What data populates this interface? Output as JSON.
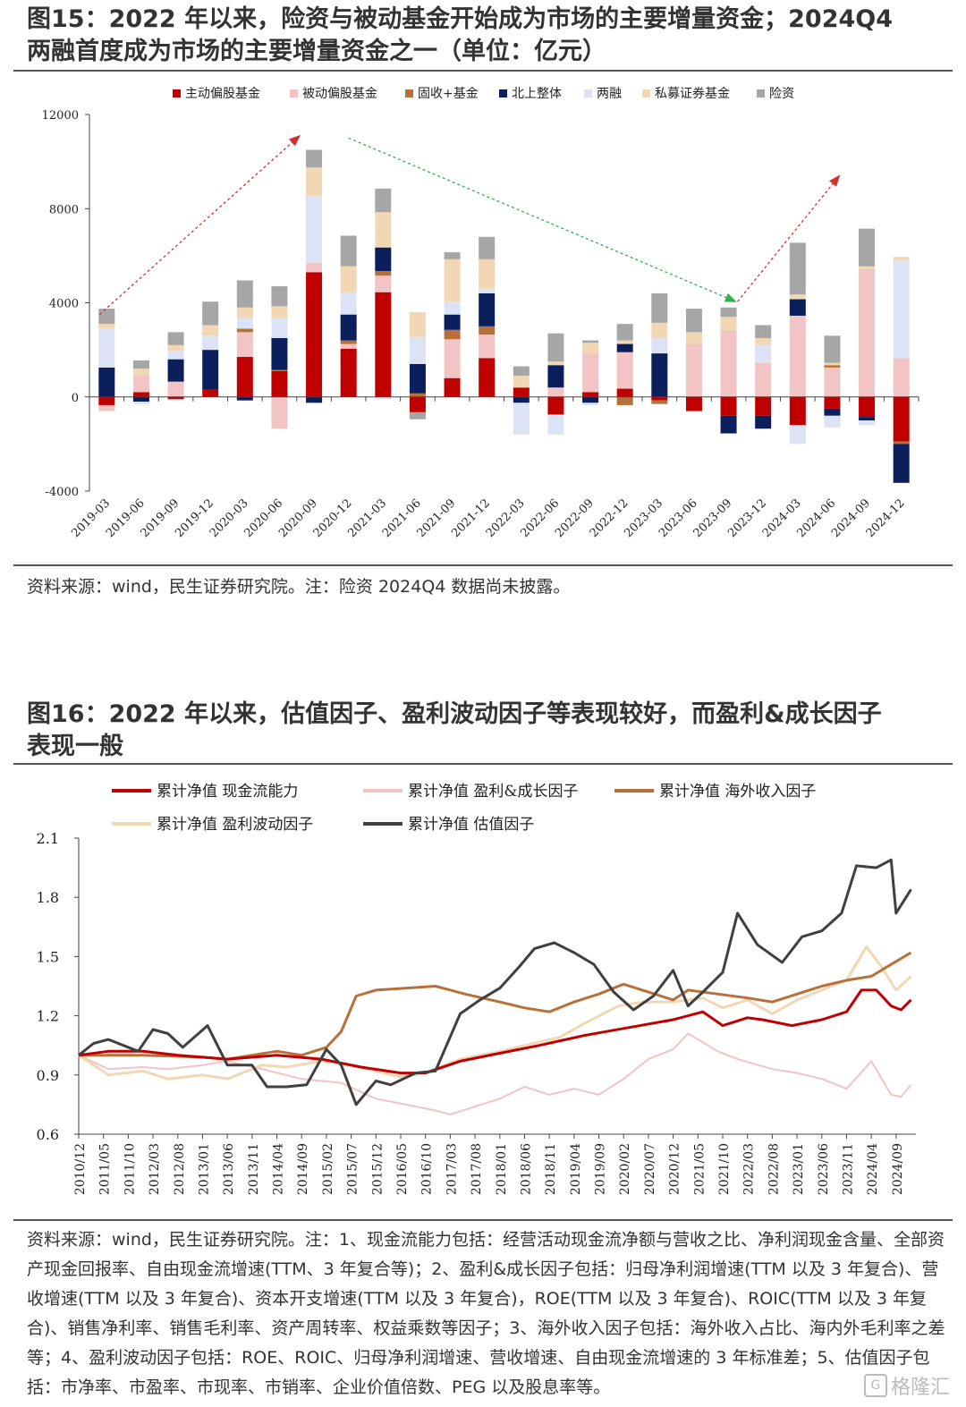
{
  "fig15": {
    "title_line1": "图15：2022 年以来，险资与被动基金开始成为市场的主要增量资金；2024Q4",
    "title_line2": "两融首度成为市场的主要增量资金之一（单位：亿元）",
    "source": "资料来源：wind，民生证券研究院。注：险资 2024Q4 数据尚未披露。"
  },
  "fig16": {
    "title_line1": "图16：2022 年以来，估值因子、盈利波动因子等表现较好，而盈利&成长因子",
    "title_line2": "表现一般",
    "source": "资料来源：wind，民生证券研究院。注：1、现金流能力包括：经营活动现金流净额与营收之比、净利润现金含量、全部资产现金回报率、自由现金流增速(TTM、3 年复合等)；2、盈利&成长因子包括：归母净利润增速(TTM 以及 3 年复合)、营收增速(TTM 以及 3 年复合)、资本开支增速(TTM 以及 3 年复合)，ROE(TTM 以及 3 年复合)、ROIC(TTM 以及 3 年复合)、销售净利率、销售毛利率、资产周转率、权益乘数等因子；3、海外收入因子包括：海外收入占比、海内外毛利率之差等；4、盈利波动因子包括：ROE、ROIC、归母净利润增速、营收增速、自由现金流增速的 3 年标准差；5、估值因子包括：市净率、市盈率、市现率、市销率、企业价值倍数、PEG 以及股息率等。"
  },
  "watermark": {
    "glyph": "G",
    "text": "格隆汇"
  },
  "chart_data": [
    {
      "type": "bar",
      "stacked": true,
      "categories": [
        "2019-03",
        "2019-06",
        "2019-09",
        "2019-12",
        "2020-03",
        "2020-06",
        "2020-09",
        "2020-12",
        "2021-03",
        "2021-06",
        "2021-09",
        "2021-12",
        "2022-03",
        "2022-06",
        "2022-09",
        "2022-12",
        "2023-03",
        "2023-06",
        "2023-09",
        "2023-12",
        "2024-03",
        "2024-06",
        "2024-09",
        "2024-12"
      ],
      "ylim": [
        -4000,
        12000
      ],
      "yticks": [
        -4000,
        0,
        4000,
        8000,
        12000
      ],
      "legend_position": "top",
      "series": [
        {
          "name": "主动偏股基金",
          "color": "#C00000",
          "values": [
            -350,
            200,
            -100,
            300,
            1700,
            1100,
            5300,
            2050,
            4450,
            -650,
            800,
            1650,
            400,
            -750,
            200,
            350,
            -150,
            -600,
            -800,
            -800,
            -1200,
            -500,
            -850,
            -1900
          ]
        },
        {
          "name": "被动偏股基金",
          "color": "#F2C4C4",
          "values": [
            -250,
            700,
            650,
            0,
            1050,
            -1350,
            400,
            200,
            700,
            0,
            1650,
            1000,
            0,
            400,
            1650,
            1550,
            0,
            2250,
            2850,
            1450,
            3450,
            1250,
            5450,
            1650
          ]
        },
        {
          "name": "固收+基金",
          "color": "#B8703A",
          "values": [
            0,
            0,
            0,
            0,
            150,
            50,
            0,
            150,
            200,
            150,
            400,
            350,
            0,
            0,
            0,
            -350,
            -150,
            0,
            0,
            0,
            0,
            100,
            0,
            -100
          ]
        },
        {
          "name": "北上整体",
          "color": "#0B1F5C",
          "values": [
            1250,
            -200,
            950,
            1700,
            -150,
            1350,
            -250,
            1100,
            1000,
            1250,
            650,
            1400,
            -250,
            950,
            -250,
            350,
            1850,
            0,
            -750,
            -550,
            700,
            -300,
            -150,
            -1650
          ]
        },
        {
          "name": "两融",
          "color": "#DCE3F5",
          "values": [
            1650,
            -100,
            350,
            600,
            450,
            850,
            2850,
            950,
            -100,
            1150,
            550,
            200,
            -1350,
            -850,
            -100,
            0,
            650,
            -50,
            0,
            750,
            -800,
            -500,
            -200,
            4150
          ]
        },
        {
          "name": "私募证券基金",
          "color": "#F2D7B5",
          "values": [
            200,
            300,
            250,
            450,
            450,
            500,
            1200,
            1100,
            1500,
            1050,
            1800,
            1250,
            500,
            150,
            450,
            150,
            650,
            500,
            550,
            300,
            200,
            100,
            100,
            150
          ]
        },
        {
          "name": "险资",
          "color": "#A6A6A6",
          "values": [
            650,
            350,
            550,
            1000,
            1150,
            850,
            750,
            1300,
            1000,
            -300,
            300,
            950,
            400,
            1200,
            100,
            700,
            1250,
            1000,
            400,
            550,
            2200,
            1150,
            1600,
            0
          ]
        }
      ],
      "annotations": [
        "2019-03 → 2020-09 red arrow (rising)",
        "2020-12 → 2023-09 green arrow (falling)",
        "2023-09 → 2024-09 red arrow (rising)"
      ]
    },
    {
      "type": "line",
      "ylim": [
        0.6,
        2.1
      ],
      "yticks": [
        0.6,
        0.9,
        1.2,
        1.5,
        1.8,
        2.1
      ],
      "xticks": [
        "2010/12",
        "2011/05",
        "2011/10",
        "2012/03",
        "2012/08",
        "2013/01",
        "2013/06",
        "2013/11",
        "2014/04",
        "2014/09",
        "2015/02",
        "2015/07",
        "2015/12",
        "2016/05",
        "2016/10",
        "2017/03",
        "2017/08",
        "2018/01",
        "2018/06",
        "2018/11",
        "2019/04",
        "2019/09",
        "2020/02",
        "2020/07",
        "2020/12",
        "2021/05",
        "2021/10",
        "2022/03",
        "2022/08",
        "2023/01",
        "2023/06",
        "2023/11",
        "2024/04",
        "2024/09"
      ],
      "legend_position": "top",
      "series": [
        {
          "name": "累计净值 现金流能力",
          "color": "#C00000",
          "width": 3,
          "points": [
            [
              "2010/12",
              1.0
            ],
            [
              "2011/06",
              1.02
            ],
            [
              "2012/01",
              1.02
            ],
            [
              "2012/08",
              1.0
            ],
            [
              "2013/06",
              0.98
            ],
            [
              "2014/04",
              1.0
            ],
            [
              "2015/01",
              0.98
            ],
            [
              "2015/09",
              0.94
            ],
            [
              "2016/05",
              0.91
            ],
            [
              "2016/10",
              0.91
            ],
            [
              "2017/05",
              0.97
            ],
            [
              "2018/01",
              1.01
            ],
            [
              "2018/09",
              1.05
            ],
            [
              "2019/06",
              1.1
            ],
            [
              "2020/03",
              1.14
            ],
            [
              "2020/12",
              1.18
            ],
            [
              "2021/06",
              1.22
            ],
            [
              "2021/10",
              1.15
            ],
            [
              "2022/03",
              1.19
            ],
            [
              "2022/06",
              1.18
            ],
            [
              "2022/12",
              1.15
            ],
            [
              "2023/06",
              1.18
            ],
            [
              "2023/11",
              1.22
            ],
            [
              "2024/02",
              1.33
            ],
            [
              "2024/05",
              1.33
            ],
            [
              "2024/08",
              1.25
            ],
            [
              "2024/10",
              1.23
            ],
            [
              "2024/12",
              1.28
            ]
          ]
        },
        {
          "name": "累计净值 盈利&成长因子",
          "color": "#F2C4C4",
          "width": 2,
          "points": [
            [
              "2010/12",
              1.0
            ],
            [
              "2011/06",
              0.93
            ],
            [
              "2012/01",
              0.94
            ],
            [
              "2012/06",
              0.93
            ],
            [
              "2013/01",
              0.95
            ],
            [
              "2013/06",
              0.97
            ],
            [
              "2014/01",
              0.93
            ],
            [
              "2014/09",
              0.88
            ],
            [
              "2015/05",
              0.86
            ],
            [
              "2015/12",
              0.78
            ],
            [
              "2016/06",
              0.75
            ],
            [
              "2016/12",
              0.72
            ],
            [
              "2017/03",
              0.7
            ],
            [
              "2017/08",
              0.74
            ],
            [
              "2018/01",
              0.78
            ],
            [
              "2018/06",
              0.84
            ],
            [
              "2018/11",
              0.8
            ],
            [
              "2019/04",
              0.83
            ],
            [
              "2019/09",
              0.8
            ],
            [
              "2020/02",
              0.88
            ],
            [
              "2020/07",
              0.98
            ],
            [
              "2020/12",
              1.03
            ],
            [
              "2021/03",
              1.11
            ],
            [
              "2021/09",
              1.02
            ],
            [
              "2022/01",
              0.98
            ],
            [
              "2022/08",
              0.93
            ],
            [
              "2023/01",
              0.91
            ],
            [
              "2023/06",
              0.88
            ],
            [
              "2023/11",
              0.83
            ],
            [
              "2024/04",
              0.97
            ],
            [
              "2024/08",
              0.8
            ],
            [
              "2024/10",
              0.79
            ],
            [
              "2024/12",
              0.85
            ]
          ]
        },
        {
          "name": "累计净值 海外收入因子",
          "color": "#B8703A",
          "width": 3,
          "points": [
            [
              "2010/12",
              1.0
            ],
            [
              "2011/06",
              1.0
            ],
            [
              "2012/01",
              1.0
            ],
            [
              "2013/01",
              0.99
            ],
            [
              "2013/06",
              0.98
            ],
            [
              "2014/04",
              1.02
            ],
            [
              "2014/09",
              1.0
            ],
            [
              "2015/02",
              1.04
            ],
            [
              "2015/05",
              1.12
            ],
            [
              "2015/08",
              1.3
            ],
            [
              "2015/12",
              1.33
            ],
            [
              "2016/06",
              1.34
            ],
            [
              "2016/12",
              1.35
            ],
            [
              "2017/06",
              1.31
            ],
            [
              "2018/01",
              1.27
            ],
            [
              "2018/06",
              1.24
            ],
            [
              "2018/11",
              1.22
            ],
            [
              "2019/04",
              1.27
            ],
            [
              "2019/09",
              1.31
            ],
            [
              "2020/02",
              1.36
            ],
            [
              "2020/07",
              1.32
            ],
            [
              "2020/12",
              1.28
            ],
            [
              "2021/03",
              1.33
            ],
            [
              "2021/09",
              1.31
            ],
            [
              "2022/03",
              1.29
            ],
            [
              "2022/08",
              1.27
            ],
            [
              "2023/01",
              1.31
            ],
            [
              "2023/06",
              1.35
            ],
            [
              "2023/11",
              1.38
            ],
            [
              "2024/04",
              1.4
            ],
            [
              "2024/08",
              1.46
            ],
            [
              "2024/12",
              1.52
            ]
          ]
        },
        {
          "name": "累计净值 盈利波动因子",
          "color": "#F2D7B5",
          "width": 3,
          "points": [
            [
              "2010/12",
              1.0
            ],
            [
              "2011/06",
              0.9
            ],
            [
              "2012/01",
              0.92
            ],
            [
              "2012/06",
              0.88
            ],
            [
              "2013/01",
              0.9
            ],
            [
              "2013/06",
              0.88
            ],
            [
              "2014/01",
              0.95
            ],
            [
              "2014/06",
              0.94
            ],
            [
              "2015/01",
              0.97
            ],
            [
              "2015/05",
              0.96
            ],
            [
              "2015/12",
              0.92
            ],
            [
              "2016/05",
              0.89
            ],
            [
              "2016/10",
              0.91
            ],
            [
              "2017/05",
              0.98
            ],
            [
              "2018/01",
              1.02
            ],
            [
              "2018/06",
              1.05
            ],
            [
              "2019/01",
              1.09
            ],
            [
              "2019/06",
              1.16
            ],
            [
              "2020/01",
              1.25
            ],
            [
              "2020/06",
              1.27
            ],
            [
              "2020/12",
              1.27
            ],
            [
              "2021/06",
              1.29
            ],
            [
              "2021/10",
              1.24
            ],
            [
              "2022/03",
              1.28
            ],
            [
              "2022/08",
              1.21
            ],
            [
              "2023/01",
              1.28
            ],
            [
              "2023/06",
              1.33
            ],
            [
              "2023/11",
              1.38
            ],
            [
              "2024/03",
              1.55
            ],
            [
              "2024/06",
              1.45
            ],
            [
              "2024/09",
              1.33
            ],
            [
              "2024/12",
              1.4
            ]
          ]
        },
        {
          "name": "累计净值 估值因子",
          "color": "#404040",
          "width": 3,
          "points": [
            [
              "2010/12",
              1.0
            ],
            [
              "2011/03",
              1.06
            ],
            [
              "2011/06",
              1.08
            ],
            [
              "2011/12",
              1.02
            ],
            [
              "2012/03",
              1.13
            ],
            [
              "2012/06",
              1.11
            ],
            [
              "2012/09",
              1.04
            ],
            [
              "2013/02",
              1.15
            ],
            [
              "2013/06",
              0.95
            ],
            [
              "2013/11",
              0.95
            ],
            [
              "2014/02",
              0.84
            ],
            [
              "2014/06",
              0.84
            ],
            [
              "2014/10",
              0.85
            ],
            [
              "2015/02",
              1.03
            ],
            [
              "2015/05",
              0.95
            ],
            [
              "2015/08",
              0.75
            ],
            [
              "2015/12",
              0.87
            ],
            [
              "2016/03",
              0.85
            ],
            [
              "2016/08",
              0.91
            ],
            [
              "2016/12",
              0.92
            ],
            [
              "2017/05",
              1.21
            ],
            [
              "2017/09",
              1.28
            ],
            [
              "2018/01",
              1.34
            ],
            [
              "2018/05",
              1.45
            ],
            [
              "2018/08",
              1.54
            ],
            [
              "2018/12",
              1.57
            ],
            [
              "2019/04",
              1.52
            ],
            [
              "2019/08",
              1.46
            ],
            [
              "2019/12",
              1.32
            ],
            [
              "2020/04",
              1.23
            ],
            [
              "2020/08",
              1.3
            ],
            [
              "2020/12",
              1.43
            ],
            [
              "2021/03",
              1.25
            ],
            [
              "2021/06",
              1.32
            ],
            [
              "2021/10",
              1.42
            ],
            [
              "2022/01",
              1.72
            ],
            [
              "2022/05",
              1.56
            ],
            [
              "2022/10",
              1.47
            ],
            [
              "2023/02",
              1.6
            ],
            [
              "2023/06",
              1.63
            ],
            [
              "2023/10",
              1.72
            ],
            [
              "2024/01",
              1.96
            ],
            [
              "2024/05",
              1.95
            ],
            [
              "2024/08",
              1.99
            ],
            [
              "2024/09",
              1.72
            ],
            [
              "2024/12",
              1.84
            ]
          ]
        }
      ]
    }
  ]
}
